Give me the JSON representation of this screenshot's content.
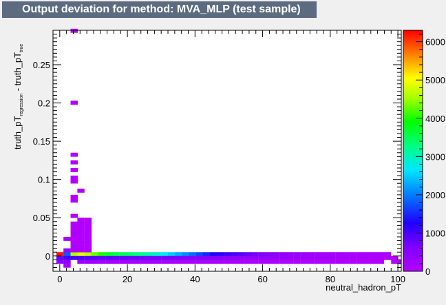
{
  "title": "Output deviation for method: MVA_MLP (test sample)",
  "chart_data": {
    "type": "heatmap",
    "title": "Output deviation for method: MVA_MLP (test sample)",
    "xlabel": "neutral_hadron_pT",
    "ylabel_main": "truth_pT",
    "ylabel_sub1": "regression",
    "ylabel_mid": " - truth_pT",
    "ylabel_sub2": "true",
    "xlim": [
      -2,
      101
    ],
    "ylim": [
      -0.02,
      0.295
    ],
    "xticks": [
      0,
      20,
      40,
      60,
      80,
      100
    ],
    "yticks": [
      0,
      0.05,
      0.1,
      0.15,
      0.2,
      0.25
    ],
    "ytick_labels": [
      "0",
      "0.05",
      "0.1",
      "0.15",
      "0.2",
      "0.25"
    ],
    "zlim": [
      0,
      6300
    ],
    "zticks": [
      0,
      1000,
      2000,
      3000,
      4000,
      5000,
      6000
    ],
    "bin_width_x": 2.06,
    "bin_height_y": 0.005,
    "cells": [
      [
        -1,
        0,
        6200
      ],
      [
        1.1,
        0,
        1800
      ],
      [
        3.2,
        0,
        4600
      ],
      [
        5.2,
        0,
        4900
      ],
      [
        7.3,
        0,
        4700
      ],
      [
        9.3,
        0,
        4300
      ],
      [
        11.4,
        0,
        4000
      ],
      [
        13.5,
        0,
        3700
      ],
      [
        15.5,
        0,
        3600
      ],
      [
        17.6,
        0,
        3500
      ],
      [
        19.6,
        0,
        3400
      ],
      [
        21.7,
        0,
        3300
      ],
      [
        23.8,
        0,
        3200
      ],
      [
        25.8,
        0,
        3000
      ],
      [
        27.9,
        0,
        2900
      ],
      [
        30,
        0,
        2700
      ],
      [
        32,
        0,
        2500
      ],
      [
        34.1,
        0,
        2300
      ],
      [
        36.1,
        0,
        2100
      ],
      [
        38.2,
        0,
        1900
      ],
      [
        40.3,
        0,
        1700
      ],
      [
        42.3,
        0,
        1500
      ],
      [
        44.4,
        0,
        1300
      ],
      [
        46.4,
        0,
        1200
      ],
      [
        48.5,
        0,
        1100
      ],
      [
        50.6,
        0,
        1000
      ],
      [
        52.6,
        0,
        900
      ],
      [
        54.7,
        0,
        800
      ],
      [
        56.7,
        0,
        700
      ],
      [
        58.8,
        0,
        650
      ],
      [
        60.9,
        0,
        600
      ],
      [
        62.9,
        0,
        500
      ],
      [
        65,
        0,
        400
      ],
      [
        67,
        0,
        350
      ],
      [
        69.1,
        0,
        300
      ],
      [
        71.2,
        0,
        260
      ],
      [
        73.2,
        0,
        220
      ],
      [
        75.3,
        0,
        200
      ],
      [
        77.3,
        0,
        180
      ],
      [
        79.4,
        0,
        160
      ],
      [
        81.5,
        0,
        140
      ],
      [
        83.5,
        0,
        120
      ],
      [
        85.6,
        0,
        110
      ],
      [
        87.7,
        0,
        100
      ],
      [
        89.7,
        0,
        90
      ],
      [
        91.8,
        0,
        80
      ],
      [
        93.8,
        0,
        70
      ],
      [
        95.9,
        0,
        60
      ],
      [
        -1,
        -0.005,
        800
      ],
      [
        1.1,
        -0.005,
        1000
      ],
      [
        3.2,
        -0.005,
        1000
      ],
      [
        5.2,
        -0.005,
        950
      ],
      [
        7.3,
        -0.005,
        900
      ],
      [
        9.3,
        -0.005,
        880
      ],
      [
        11.4,
        -0.005,
        860
      ],
      [
        13.5,
        -0.005,
        840
      ],
      [
        15.5,
        -0.005,
        820
      ],
      [
        17.6,
        -0.005,
        800
      ],
      [
        19.6,
        -0.005,
        780
      ],
      [
        21.7,
        -0.005,
        760
      ],
      [
        23.8,
        -0.005,
        740
      ],
      [
        25.8,
        -0.005,
        720
      ],
      [
        27.9,
        -0.005,
        700
      ],
      [
        30,
        -0.005,
        680
      ],
      [
        32,
        -0.005,
        660
      ],
      [
        34.1,
        -0.005,
        640
      ],
      [
        36.1,
        -0.005,
        620
      ],
      [
        38.2,
        -0.005,
        600
      ],
      [
        40.3,
        -0.005,
        580
      ],
      [
        42.3,
        -0.005,
        560
      ],
      [
        44.4,
        -0.005,
        540
      ],
      [
        46.4,
        -0.005,
        520
      ],
      [
        48.5,
        -0.005,
        500
      ],
      [
        50.6,
        -0.005,
        480
      ],
      [
        52.6,
        -0.005,
        460
      ],
      [
        54.7,
        -0.005,
        440
      ],
      [
        56.7,
        -0.005,
        420
      ],
      [
        58.8,
        -0.005,
        400
      ],
      [
        60.9,
        -0.005,
        380
      ],
      [
        62.9,
        -0.005,
        360
      ],
      [
        65,
        -0.005,
        340
      ],
      [
        67,
        -0.005,
        320
      ],
      [
        69.1,
        -0.005,
        300
      ],
      [
        71.2,
        -0.005,
        280
      ],
      [
        73.2,
        -0.005,
        260
      ],
      [
        75.3,
        -0.005,
        240
      ],
      [
        77.3,
        -0.005,
        220
      ],
      [
        79.4,
        -0.005,
        200
      ],
      [
        81.5,
        -0.005,
        180
      ],
      [
        83.5,
        -0.005,
        160
      ],
      [
        85.6,
        -0.005,
        140
      ],
      [
        87.7,
        -0.005,
        120
      ],
      [
        89.7,
        -0.005,
        100
      ],
      [
        91.8,
        -0.005,
        80
      ],
      [
        93.8,
        -0.005,
        60
      ],
      [
        95.9,
        -0.005,
        40
      ],
      [
        98,
        -0.005,
        20
      ],
      [
        -1,
        -0.01,
        400
      ],
      [
        1.1,
        -0.01,
        400
      ],
      [
        5.2,
        -0.01,
        300
      ],
      [
        7.3,
        -0.01,
        280
      ],
      [
        9.3,
        -0.01,
        260
      ],
      [
        11.4,
        -0.01,
        240
      ],
      [
        13.5,
        -0.01,
        230
      ],
      [
        15.5,
        -0.01,
        220
      ],
      [
        17.6,
        -0.01,
        210
      ],
      [
        19.6,
        -0.01,
        200
      ],
      [
        21.7,
        -0.01,
        190
      ],
      [
        23.8,
        -0.01,
        180
      ],
      [
        25.8,
        -0.01,
        170
      ],
      [
        27.9,
        -0.01,
        160
      ],
      [
        30,
        -0.01,
        150
      ],
      [
        32,
        -0.01,
        140
      ],
      [
        34.1,
        -0.01,
        130
      ],
      [
        36.1,
        -0.01,
        120
      ],
      [
        38.2,
        -0.01,
        110
      ],
      [
        40.3,
        -0.01,
        100
      ],
      [
        42.3,
        -0.01,
        95
      ],
      [
        44.4,
        -0.01,
        90
      ],
      [
        46.4,
        -0.01,
        85
      ],
      [
        48.5,
        -0.01,
        80
      ],
      [
        50.6,
        -0.01,
        75
      ],
      [
        52.6,
        -0.01,
        70
      ],
      [
        54.7,
        -0.01,
        65
      ],
      [
        56.7,
        -0.01,
        60
      ],
      [
        58.8,
        -0.01,
        55
      ],
      [
        60.9,
        -0.01,
        50
      ],
      [
        62.9,
        -0.01,
        45
      ],
      [
        65,
        -0.01,
        40
      ],
      [
        67,
        -0.01,
        35
      ],
      [
        69.1,
        -0.01,
        30
      ],
      [
        71.2,
        -0.01,
        25
      ],
      [
        73.2,
        -0.01,
        20
      ],
      [
        75.3,
        -0.01,
        18
      ],
      [
        77.3,
        -0.01,
        16
      ],
      [
        79.4,
        -0.01,
        14
      ],
      [
        81.5,
        -0.01,
        12
      ],
      [
        83.5,
        -0.01,
        10
      ],
      [
        85.6,
        -0.01,
        8
      ],
      [
        87.7,
        -0.01,
        6
      ],
      [
        89.7,
        -0.01,
        5
      ],
      [
        91.8,
        -0.01,
        4
      ],
      [
        93.8,
        -0.01,
        3
      ],
      [
        98,
        -0.01,
        3
      ],
      [
        100,
        -0.01,
        2
      ],
      [
        1.1,
        -0.015,
        120
      ],
      [
        1.1,
        0.005,
        300
      ],
      [
        1.1,
        0.02,
        60
      ],
      [
        3.2,
        0.005,
        80
      ],
      [
        5.2,
        0.005,
        70
      ],
      [
        7.3,
        0.005,
        60
      ],
      [
        3.2,
        0.01,
        40
      ],
      [
        5.2,
        0.01,
        40
      ],
      [
        7.3,
        0.01,
        40
      ],
      [
        3.2,
        0.015,
        30
      ],
      [
        5.2,
        0.015,
        30
      ],
      [
        7.3,
        0.015,
        30
      ],
      [
        3.2,
        0.02,
        25
      ],
      [
        5.2,
        0.02,
        25
      ],
      [
        7.3,
        0.02,
        25
      ],
      [
        3.2,
        0.025,
        20
      ],
      [
        5.2,
        0.025,
        20
      ],
      [
        7.3,
        0.025,
        20
      ],
      [
        3.2,
        0.03,
        20
      ],
      [
        5.2,
        0.03,
        20
      ],
      [
        7.3,
        0.03,
        20
      ],
      [
        3.2,
        0.035,
        15
      ],
      [
        5.2,
        0.035,
        15
      ],
      [
        7.3,
        0.035,
        15
      ],
      [
        3.2,
        0.04,
        15
      ],
      [
        5.2,
        0.04,
        15
      ],
      [
        7.3,
        0.04,
        15
      ],
      [
        5.2,
        0.045,
        10
      ],
      [
        7.3,
        0.045,
        10
      ],
      [
        3.2,
        0.05,
        10
      ],
      [
        3.2,
        0.07,
        8
      ],
      [
        3.2,
        0.075,
        8
      ],
      [
        5.2,
        0.083,
        8
      ],
      [
        3.2,
        0.095,
        8
      ],
      [
        3.2,
        0.1,
        8
      ],
      [
        3.2,
        0.11,
        8
      ],
      [
        3.2,
        0.12,
        8
      ],
      [
        3.2,
        0.13,
        8
      ],
      [
        3.2,
        0.198,
        8
      ],
      [
        3.2,
        0.292,
        8
      ]
    ]
  }
}
